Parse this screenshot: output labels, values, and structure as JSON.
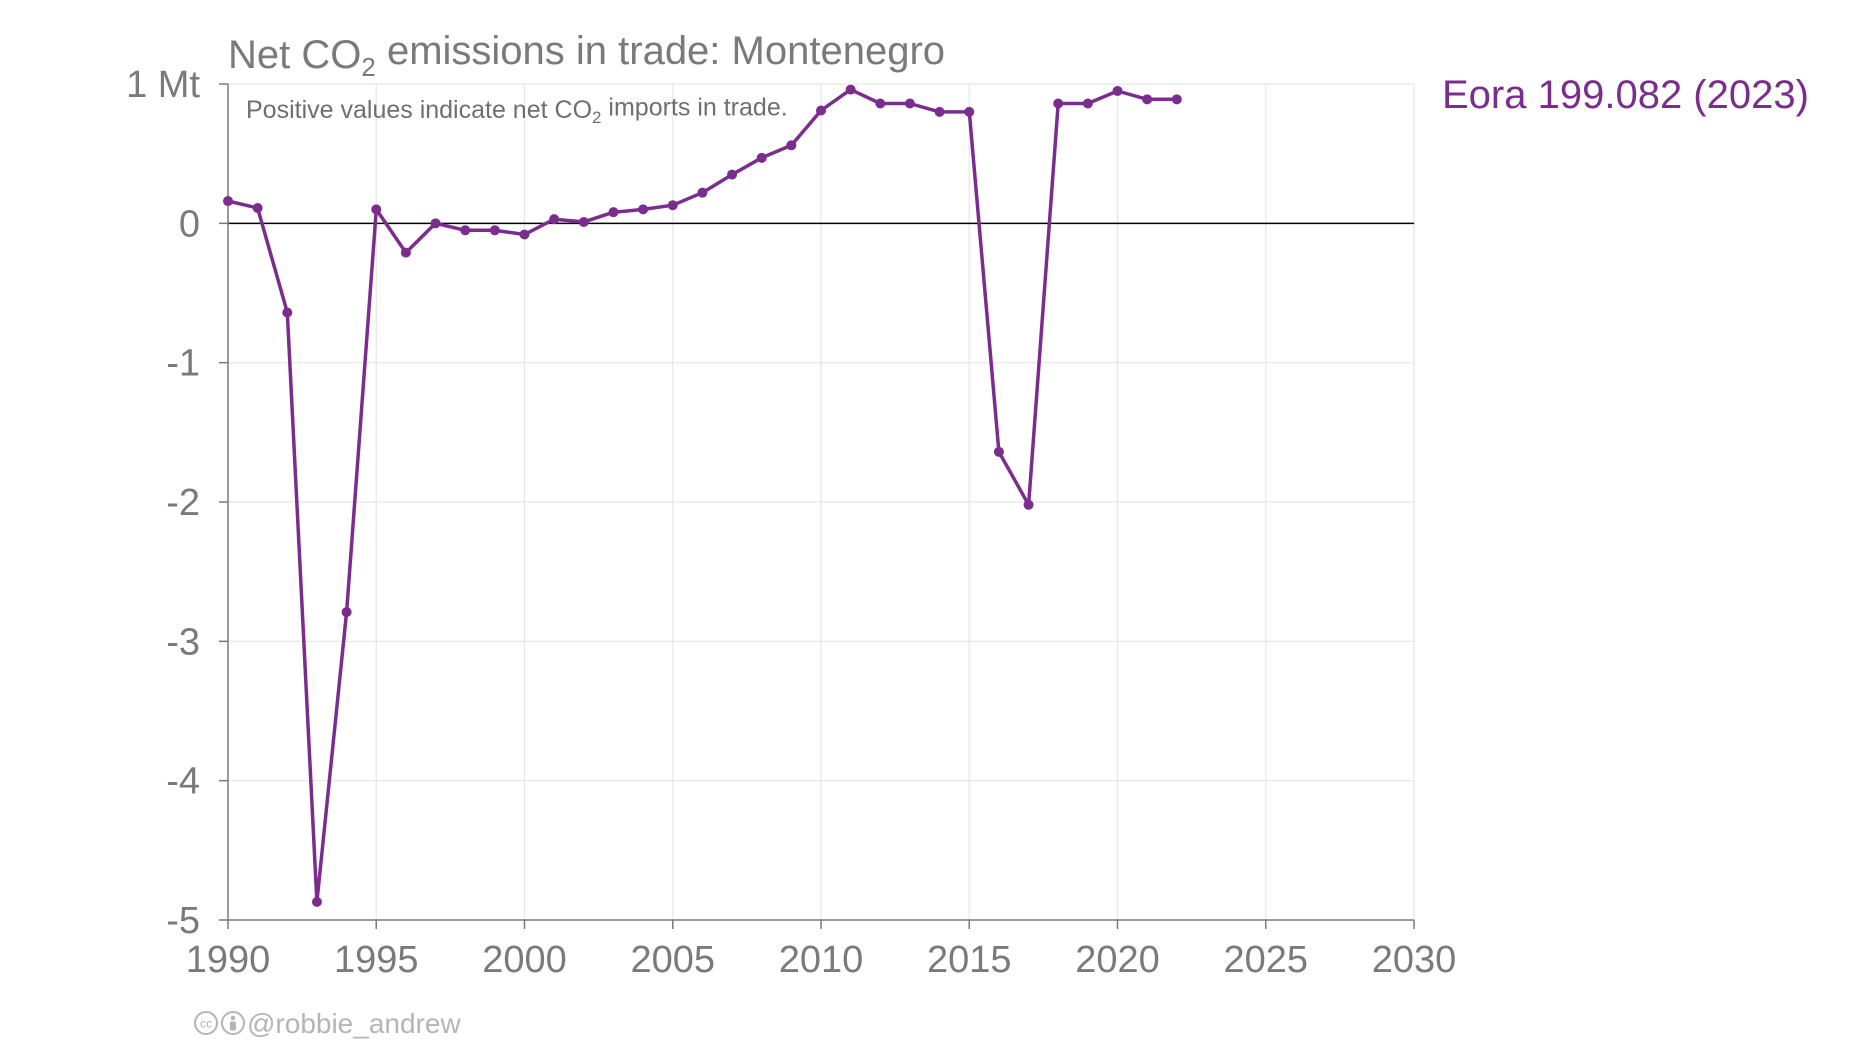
{
  "colors": {
    "series": "#7B2D8E",
    "text": "#7a7a7a",
    "grid": "#e6e6e6",
    "zero_line": "#000000"
  },
  "credit": {
    "handle": "@robbie_andrew",
    "icons": [
      "cc-icon",
      "attribution-icon"
    ]
  },
  "chart_data": {
    "type": "line",
    "title": "Net CO₂ emissions in trade: Montenegro",
    "subtitle": "Positive values indicate net CO₂ imports in trade.",
    "y_unit_label": "1 Mt",
    "xlim": [
      1990,
      2030
    ],
    "ylim": [
      -5,
      1
    ],
    "x_ticks": [
      "1990",
      "1995",
      "2000",
      "2005",
      "2010",
      "2015",
      "2020",
      "2025",
      "2030"
    ],
    "y_ticks": [
      "1 Mt",
      "0",
      "-1",
      "-2",
      "-3",
      "-4",
      "-5"
    ],
    "grid": true,
    "series": [
      {
        "name": "Eora 199.082 (2023)",
        "x": [
          1990,
          1991,
          1992,
          1993,
          1994,
          1995,
          1996,
          1997,
          1998,
          1999,
          2000,
          2001,
          2002,
          2003,
          2004,
          2005,
          2006,
          2007,
          2008,
          2009,
          2010,
          2011,
          2012,
          2013,
          2014,
          2015,
          2016,
          2017,
          2018,
          2019,
          2020,
          2021,
          2022
        ],
        "y": [
          0.16,
          0.11,
          -0.64,
          -4.87,
          -2.79,
          0.1,
          -0.21,
          0.0,
          -0.05,
          -0.05,
          -0.08,
          0.03,
          0.01,
          0.08,
          0.1,
          0.13,
          0.22,
          0.35,
          0.47,
          0.56,
          0.81,
          0.96,
          0.86,
          0.86,
          0.8,
          0.8,
          -1.64,
          -2.02,
          0.86,
          0.86,
          0.95,
          0.89,
          0.89
        ]
      }
    ]
  }
}
